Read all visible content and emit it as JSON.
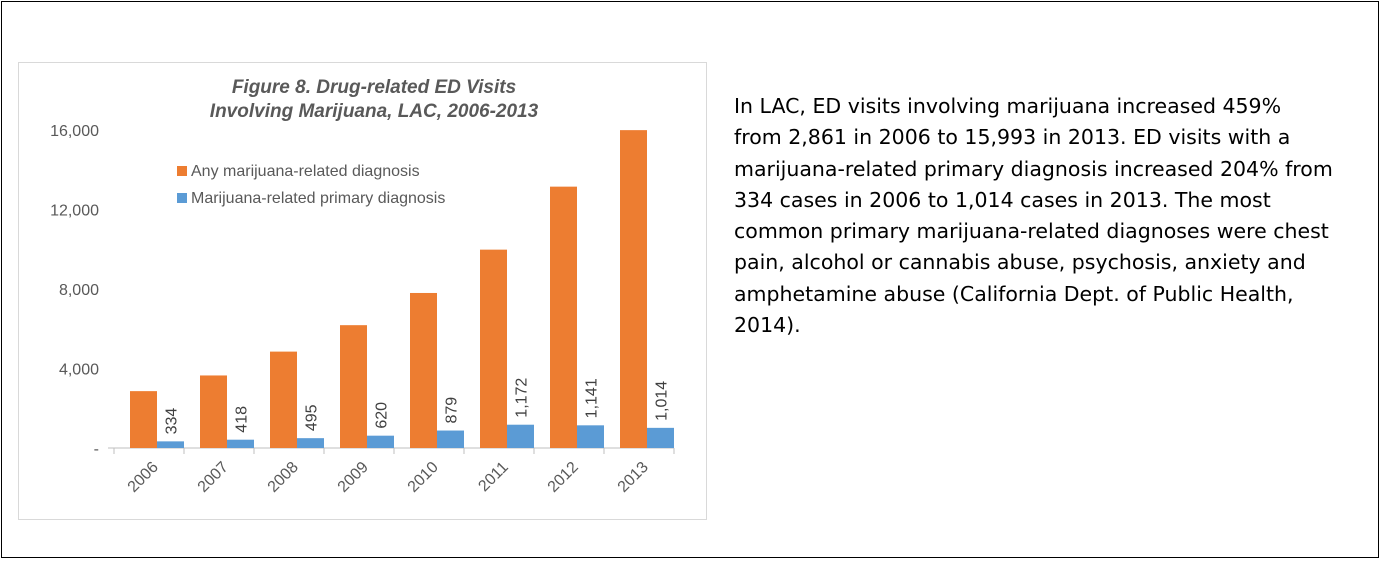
{
  "chart_data": {
    "type": "bar",
    "title_lines": [
      "Figure 8. Drug-related ED Visits",
      "Involving Marijuana, LAC, 2006-2013"
    ],
    "categories": [
      "2006",
      "2007",
      "2008",
      "2009",
      "2010",
      "2011",
      "2012",
      "2013"
    ],
    "series": [
      {
        "name": "Any marijuana-related diagnosis",
        "values": [
          2861,
          3650,
          4850,
          6180,
          7800,
          9980,
          13150,
          15993
        ],
        "color": "#ED7D31"
      },
      {
        "name": "Marijuana-related primary diagnosis",
        "values": [
          334,
          418,
          495,
          620,
          879,
          1172,
          1141,
          1014
        ],
        "color": "#5B9BD5"
      }
    ],
    "data_labels": [
      "334",
      "418",
      "495",
      "620",
      "879",
      "1,172",
      "1,141",
      "1,014"
    ],
    "y_ticks": [
      "-",
      "4,000",
      "8,000",
      "12,000",
      "16,000"
    ],
    "ylim": [
      0,
      16000
    ],
    "grid": false,
    "legend_position": "top-left inside plot"
  },
  "text_block": "In LAC, ED visits involving marijuana increased 459% from 2,861 in 2006 to 15,993 in 2013. ED visits with a marijuana-related primary diagnosis increased 204% from 334 cases in 2006 to 1,014 cases in 2013. The most common primary marijuana-related diagnoses were chest pain, alcohol or cannabis abuse, psychosis, anxiety and amphetamine abuse (California Dept. of Public Health, 2014)."
}
